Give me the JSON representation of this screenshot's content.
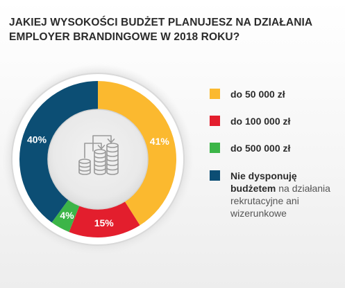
{
  "header": {
    "title_line1": "JAKIEJ WYSOKOŚCI BUDŻET PLANUJESZ NA DZIAŁANIA",
    "title_line2": "EMPLOYER BRANDINGOWE W 2018 ROKU?"
  },
  "center_icon": "coins-transfer-icon",
  "chart_data": {
    "type": "pie",
    "variant": "donut",
    "title": "JAKIEJ WYSOKOŚCI BUDŻET PLANUJESZ NA DZIAŁANIA EMPLOYER BRANDINGOWE W 2018 ROKU?",
    "legend_position": "right",
    "slices": [
      {
        "label": "do 50 000 zł",
        "value": 41,
        "display": "41%",
        "color": "#fbb92f"
      },
      {
        "label": "do 100 000 zł",
        "value": 15,
        "display": "15%",
        "color": "#e31e2d"
      },
      {
        "label": "do 500 000 zł",
        "value": 4,
        "display": "4%",
        "color": "#3cb548"
      },
      {
        "label": "Nie dysponuję budżetem na działania rekrutacyjne ani wizerunkowe",
        "label_bold": "Nie dysponuję budżetem",
        "label_rest": "na działania rekrutacyjne ani wizerunkowe",
        "value": 40,
        "display": "40%",
        "color": "#0c4e74"
      }
    ]
  }
}
